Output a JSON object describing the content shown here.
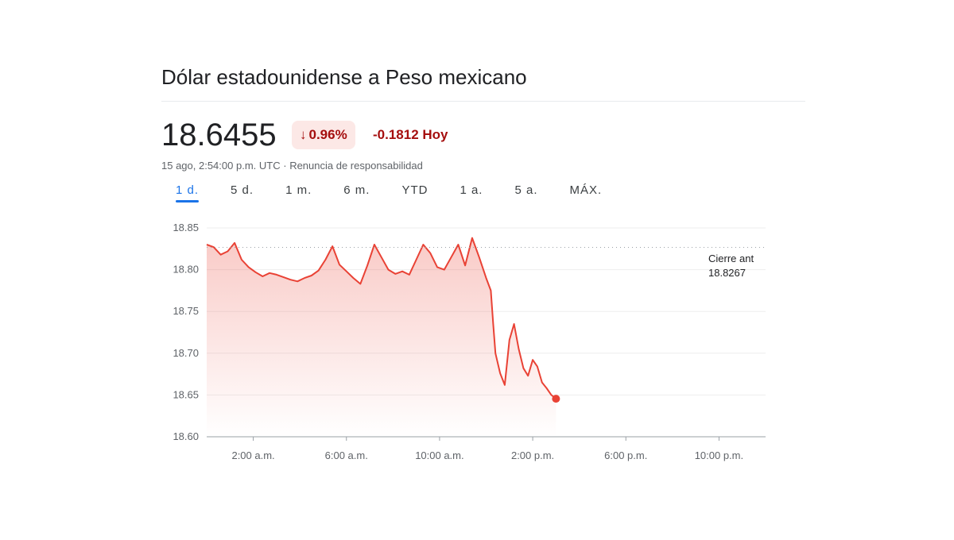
{
  "header": {
    "title": "Dólar estadounidense a Peso mexicano",
    "price": "18.6455",
    "change_percent": "0.96%",
    "change_arrow": "↓",
    "change_value": "-0.1812 Hoy",
    "timestamp": "15 ago, 2:54:00 p.m. UTC",
    "separator": "·",
    "disclaimer": "Renuncia de responsabilidad"
  },
  "tabs": [
    {
      "label": "1 d.",
      "active": true
    },
    {
      "label": "5 d."
    },
    {
      "label": "1 m."
    },
    {
      "label": "6 m."
    },
    {
      "label": "YTD"
    },
    {
      "label": "1 a."
    },
    {
      "label": "5 a."
    },
    {
      "label": "MÁX."
    }
  ],
  "colors": {
    "line": "#e94235",
    "negative_text": "#a50e0e",
    "negative_bg": "#fce8e6",
    "accent": "#1a73e8"
  },
  "chart_data": {
    "type": "line",
    "x_unit": "hour of day (UTC)",
    "xlim": [
      0,
      24
    ],
    "ylim": [
      18.6,
      18.85
    ],
    "y_ticks": [
      "18.60",
      "18.65",
      "18.70",
      "18.75",
      "18.80",
      "18.85"
    ],
    "x_ticks": [
      {
        "value": 2,
        "label": "2:00 a.m."
      },
      {
        "value": 6,
        "label": "6:00 a.m."
      },
      {
        "value": 10,
        "label": "10:00 a.m."
      },
      {
        "value": 14,
        "label": "2:00 p.m."
      },
      {
        "value": 18,
        "label": "6:00 p.m."
      },
      {
        "value": 22,
        "label": "10:00 p.m."
      }
    ],
    "previous_close": {
      "label": "Cierre ant",
      "value": 18.8267
    },
    "series": [
      {
        "x": [
          0.0,
          0.3,
          0.6,
          0.9,
          1.2,
          1.5,
          1.8,
          2.1,
          2.4,
          2.7,
          3.0,
          3.3,
          3.6,
          3.9,
          4.2,
          4.5,
          4.8,
          5.1,
          5.4,
          5.7,
          6.0,
          6.3,
          6.6,
          6.9,
          7.2,
          7.5,
          7.8,
          8.1,
          8.4,
          8.7,
          9.0,
          9.3,
          9.6,
          9.9,
          10.2,
          10.5,
          10.8,
          11.1,
          11.4,
          11.7,
          12.0,
          12.2,
          12.3,
          12.4,
          12.6,
          12.8,
          13.0,
          13.2,
          13.4,
          13.6,
          13.8,
          14.0,
          14.2,
          14.4,
          14.6,
          14.8,
          15.0
        ],
        "y": [
          18.83,
          18.827,
          18.818,
          18.822,
          18.832,
          18.812,
          18.803,
          18.797,
          18.792,
          18.796,
          18.794,
          18.791,
          18.788,
          18.786,
          18.79,
          18.793,
          18.799,
          18.812,
          18.828,
          18.806,
          18.798,
          18.79,
          18.783,
          18.805,
          18.83,
          18.815,
          18.8,
          18.795,
          18.798,
          18.794,
          18.812,
          18.83,
          18.82,
          18.803,
          18.8,
          18.815,
          18.83,
          18.805,
          18.838,
          18.815,
          18.79,
          18.775,
          18.736,
          18.7,
          18.676,
          18.662,
          18.716,
          18.735,
          18.705,
          18.682,
          18.673,
          18.692,
          18.684,
          18.665,
          18.658,
          18.65,
          18.6455
        ],
        "color": "#e94235"
      }
    ]
  }
}
